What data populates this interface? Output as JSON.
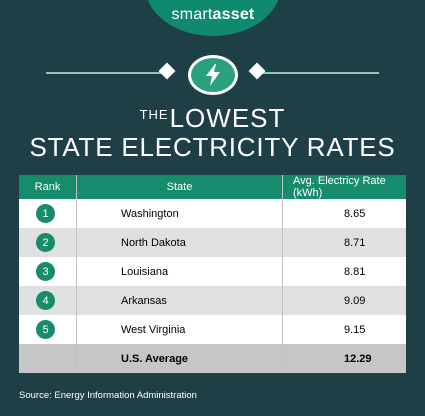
{
  "brand": {
    "logo_regular": "smart",
    "logo_bold": "asset"
  },
  "icon": "lightning-bolt-icon",
  "title": {
    "prefix": "THE",
    "line1": "LOWEST",
    "line2": "STATE ELECTRICITY RATES"
  },
  "table": {
    "headers": {
      "rank": "Rank",
      "state": "State",
      "rate": "Avg. Electricy Rate (kWh)"
    },
    "rows": [
      {
        "rank": "1",
        "state": "Washington",
        "rate": "8.65"
      },
      {
        "rank": "2",
        "state": "North Dakota",
        "rate": "8.71"
      },
      {
        "rank": "3",
        "state": "Louisiana",
        "rate": "8.81"
      },
      {
        "rank": "4",
        "state": "Arkansas",
        "rate": "9.09"
      },
      {
        "rank": "5",
        "state": "West Virginia",
        "rate": "9.15"
      }
    ],
    "average": {
      "label": "U.S. Average",
      "rate": "12.29"
    }
  },
  "source": "Source: Energy Information Administration",
  "colors": {
    "background": "#1f3f47",
    "accent": "#178c6d",
    "logo_bg": "#0f8a6e"
  }
}
